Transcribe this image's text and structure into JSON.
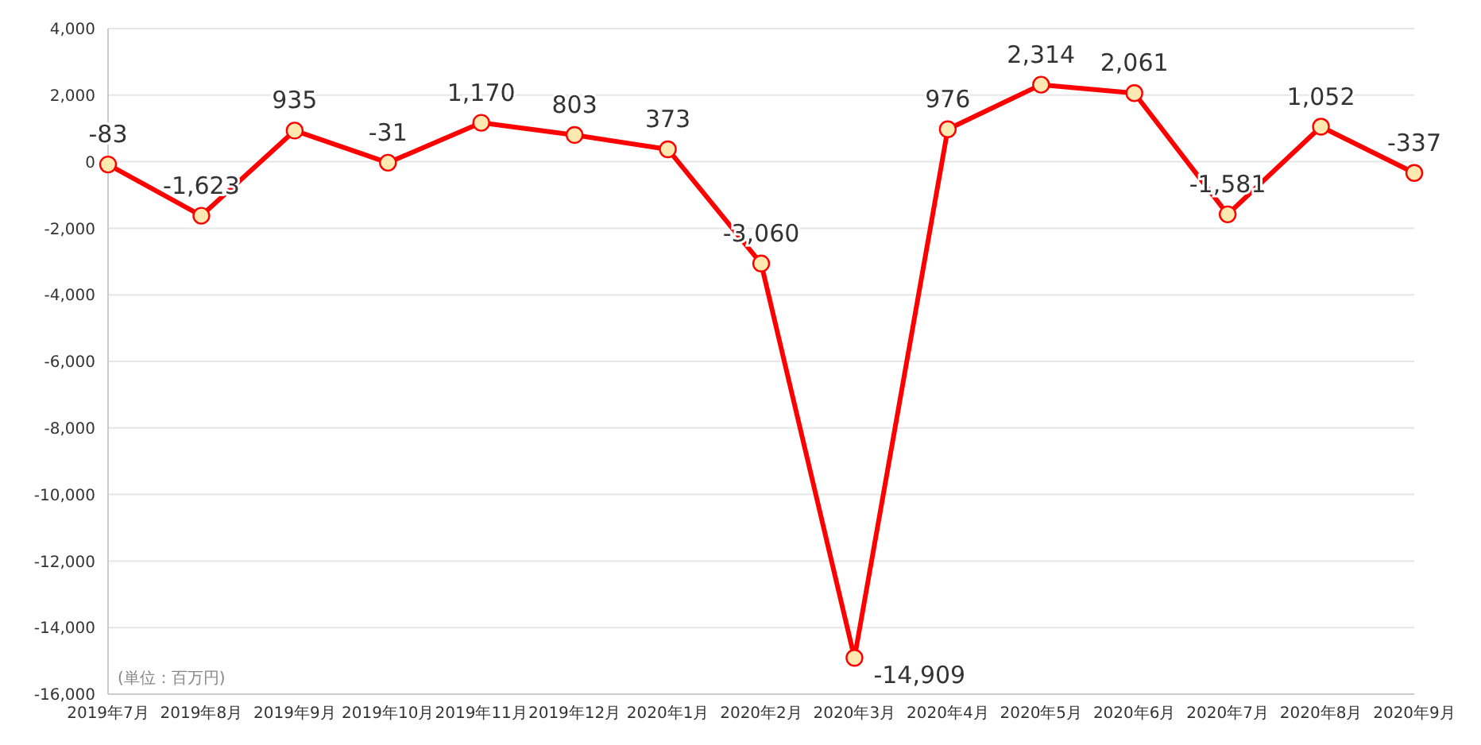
{
  "chart_data": {
    "type": "line",
    "categories": [
      "2019年7月",
      "2019年8月",
      "2019年9月",
      "2019年10月",
      "2019年11月",
      "2019年12月",
      "2020年1月",
      "2020年2月",
      "2020年3月",
      "2020年4月",
      "2020年5月",
      "2020年6月",
      "2020年7月",
      "2020年8月",
      "2020年9月"
    ],
    "series": [
      {
        "color": "#ff0000",
        "values": [
          -83,
          -1623,
          935,
          -31,
          1170,
          803,
          373,
          -3060,
          -14909,
          976,
          2314,
          2061,
          -1581,
          1052,
          -337
        ],
        "value_labels": [
          "-83",
          "-1,623",
          "935",
          "-31",
          "1,170",
          "803",
          "373",
          "-3,060",
          "-14,909",
          "976",
          "2,314",
          "2,061",
          "-1,581",
          "1,052",
          "-337"
        ]
      }
    ],
    "ylim": [
      -16000,
      4000
    ],
    "yticks": [
      {
        "value": -16000,
        "label": "-16,000"
      },
      {
        "value": -14000,
        "label": "-14,000"
      },
      {
        "value": -12000,
        "label": "-12,000"
      },
      {
        "value": -10000,
        "label": "-10,000"
      },
      {
        "value": -8000,
        "label": "-8,000"
      },
      {
        "value": -6000,
        "label": "-6,000"
      },
      {
        "value": -4000,
        "label": "-4,000"
      },
      {
        "value": -2000,
        "label": "-2,000"
      },
      0,
      {
        "value": 2000,
        "label": "2,000"
      },
      {
        "value": 4000,
        "label": "4,000"
      }
    ],
    "grid": "y",
    "marker": "circle",
    "line_style": "solid",
    "annotations": [
      "(単位：百万円)"
    ]
  }
}
